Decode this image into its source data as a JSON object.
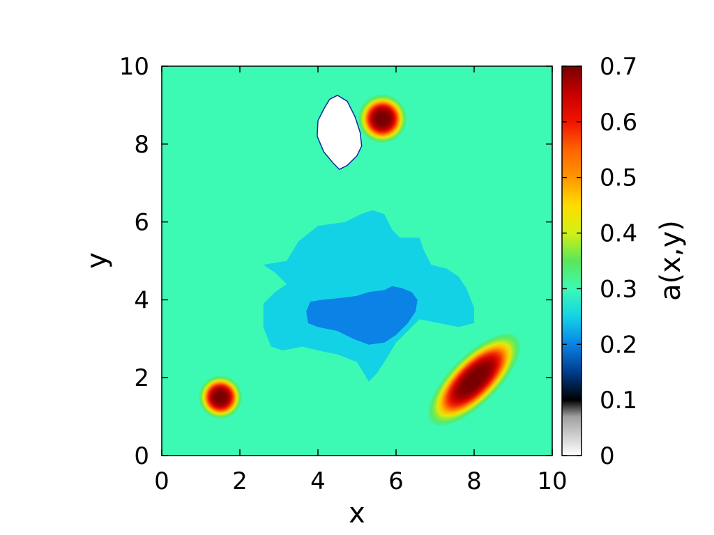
{
  "chart_data": {
    "type": "heatmap",
    "title": "",
    "xlabel": "x",
    "ylabel": "y",
    "colorbar_label": "a(x,y)",
    "xlim": [
      0,
      10
    ],
    "ylim": [
      0,
      10
    ],
    "clim": [
      0,
      0.7
    ],
    "xticks": [
      "0",
      "2",
      "4",
      "6",
      "8",
      "10"
    ],
    "yticks": [
      "0",
      "2",
      "4",
      "6",
      "8",
      "10"
    ],
    "cticks": [
      "0",
      "0.1",
      "0.2",
      "0.3",
      "0.4",
      "0.5",
      "0.6",
      "0.7"
    ],
    "background_value": 0.3,
    "colormap": [
      {
        "v": 0.0,
        "color": "#ffffff"
      },
      {
        "v": 0.07,
        "color": "#a0a0a0"
      },
      {
        "v": 0.1,
        "color": "#000000"
      },
      {
        "v": 0.15,
        "color": "#003c8c"
      },
      {
        "v": 0.2,
        "color": "#0a82e6"
      },
      {
        "v": 0.25,
        "color": "#14d2e6"
      },
      {
        "v": 0.3,
        "color": "#3cfab4"
      },
      {
        "v": 0.35,
        "color": "#5ae65a"
      },
      {
        "v": 0.4,
        "color": "#d2f014"
      },
      {
        "v": 0.45,
        "color": "#ffdc00"
      },
      {
        "v": 0.5,
        "color": "#ff9600"
      },
      {
        "v": 0.55,
        "color": "#ff6400"
      },
      {
        "v": 0.6,
        "color": "#f01400"
      },
      {
        "v": 0.65,
        "color": "#c80000"
      },
      {
        "v": 0.7,
        "color": "#780000"
      }
    ],
    "features": [
      {
        "kind": "gaussian_bump",
        "center": [
          1.5,
          1.5
        ],
        "radii": [
          0.55,
          0.55
        ],
        "angle_deg": 0,
        "peak": 0.7
      },
      {
        "kind": "gaussian_bump",
        "center": [
          5.65,
          8.65
        ],
        "radii": [
          0.62,
          0.62
        ],
        "angle_deg": 0,
        "peak": 0.7
      },
      {
        "kind": "gaussian_bump",
        "center": [
          8.0,
          1.95
        ],
        "radii": [
          1.55,
          0.62
        ],
        "angle_deg": 45,
        "peak": 0.7
      },
      {
        "kind": "region",
        "value": 0.25,
        "polygon": [
          [
            2.6,
            4.9
          ],
          [
            3.2,
            5.0
          ],
          [
            3.5,
            5.5
          ],
          [
            4.0,
            5.9
          ],
          [
            4.7,
            6.0
          ],
          [
            5.1,
            6.2
          ],
          [
            5.4,
            6.3
          ],
          [
            5.7,
            6.2
          ],
          [
            5.9,
            5.8
          ],
          [
            6.1,
            5.6
          ],
          [
            6.6,
            5.6
          ],
          [
            6.7,
            5.3
          ],
          [
            6.9,
            4.9
          ],
          [
            7.3,
            4.8
          ],
          [
            7.6,
            4.6
          ],
          [
            7.8,
            4.3
          ],
          [
            8.0,
            3.8
          ],
          [
            8.0,
            3.4
          ],
          [
            7.6,
            3.3
          ],
          [
            7.1,
            3.4
          ],
          [
            6.6,
            3.5
          ],
          [
            6.3,
            3.2
          ],
          [
            6.0,
            2.9
          ],
          [
            5.7,
            2.4
          ],
          [
            5.5,
            2.1
          ],
          [
            5.3,
            1.9
          ],
          [
            5.0,
            2.4
          ],
          [
            4.5,
            2.6
          ],
          [
            4.0,
            2.7
          ],
          [
            3.6,
            2.8
          ],
          [
            3.1,
            2.7
          ],
          [
            2.8,
            2.8
          ],
          [
            2.6,
            3.3
          ],
          [
            2.6,
            3.9
          ],
          [
            2.9,
            4.2
          ],
          [
            3.2,
            4.4
          ],
          [
            2.9,
            4.7
          ]
        ]
      },
      {
        "kind": "region",
        "value": 0.2,
        "polygon": [
          [
            3.7,
            3.7
          ],
          [
            3.8,
            3.95
          ],
          [
            4.1,
            4.0
          ],
          [
            4.6,
            4.05
          ],
          [
            5.0,
            4.1
          ],
          [
            5.3,
            4.2
          ],
          [
            5.7,
            4.25
          ],
          [
            5.9,
            4.35
          ],
          [
            6.15,
            4.3
          ],
          [
            6.4,
            4.2
          ],
          [
            6.55,
            4.0
          ],
          [
            6.5,
            3.7
          ],
          [
            6.3,
            3.4
          ],
          [
            6.0,
            3.1
          ],
          [
            5.7,
            2.9
          ],
          [
            5.3,
            2.85
          ],
          [
            4.9,
            3.0
          ],
          [
            4.5,
            3.2
          ],
          [
            4.0,
            3.3
          ],
          [
            3.75,
            3.4
          ]
        ]
      },
      {
        "kind": "region",
        "value": 0.0,
        "outline": "#0b2a9a",
        "polygon": [
          [
            4.5,
            9.25
          ],
          [
            4.75,
            9.1
          ],
          [
            4.95,
            8.7
          ],
          [
            5.08,
            8.3
          ],
          [
            5.12,
            7.95
          ],
          [
            5.0,
            7.7
          ],
          [
            4.75,
            7.45
          ],
          [
            4.55,
            7.35
          ],
          [
            4.4,
            7.5
          ],
          [
            4.15,
            7.8
          ],
          [
            3.98,
            8.2
          ],
          [
            4.0,
            8.6
          ],
          [
            4.15,
            8.9
          ],
          [
            4.3,
            9.15
          ]
        ]
      }
    ]
  }
}
